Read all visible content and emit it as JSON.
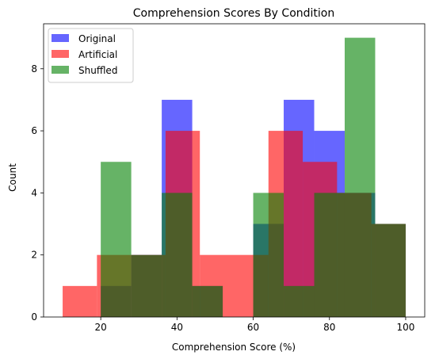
{
  "chart_data": {
    "type": "bar",
    "subtype": "overlaid-histogram",
    "title": "Comprehension Scores By Condition",
    "xlabel": "Comprehension Score (%)",
    "ylabel": "Count",
    "xlim": [
      5,
      105
    ],
    "ylim": [
      0,
      9.45
    ],
    "xticks": [
      20,
      40,
      60,
      80,
      100
    ],
    "yticks": [
      0,
      2,
      4,
      6,
      8
    ],
    "grid": false,
    "legend_position": "top-left",
    "series": [
      {
        "name": "Original",
        "color": "#0000ff",
        "alpha": 0.6,
        "bins": [
          {
            "x0": 20,
            "x1": 28,
            "count": 1
          },
          {
            "x0": 28,
            "x1": 36,
            "count": 2
          },
          {
            "x0": 36,
            "x1": 44,
            "count": 7
          },
          {
            "x0": 44,
            "x1": 52,
            "count": 1
          },
          {
            "x0": 52,
            "x1": 60,
            "count": 0
          },
          {
            "x0": 60,
            "x1": 68,
            "count": 3
          },
          {
            "x0": 68,
            "x1": 76,
            "count": 7
          },
          {
            "x0": 76,
            "x1": 84,
            "count": 6
          },
          {
            "x0": 84,
            "x1": 92,
            "count": 4
          },
          {
            "x0": 92,
            "x1": 100,
            "count": 3
          }
        ]
      },
      {
        "name": "Artificial",
        "color": "#ff0000",
        "alpha": 0.6,
        "bins": [
          {
            "x0": 10,
            "x1": 19,
            "count": 1
          },
          {
            "x0": 19,
            "x1": 28,
            "count": 2
          },
          {
            "x0": 28,
            "x1": 37,
            "count": 2
          },
          {
            "x0": 37,
            "x1": 46,
            "count": 6
          },
          {
            "x0": 46,
            "x1": 55,
            "count": 2
          },
          {
            "x0": 55,
            "x1": 64,
            "count": 2
          },
          {
            "x0": 64,
            "x1": 73,
            "count": 6
          },
          {
            "x0": 73,
            "x1": 82,
            "count": 5
          },
          {
            "x0": 82,
            "x1": 91,
            "count": 4
          },
          {
            "x0": 91,
            "x1": 100,
            "count": 3
          }
        ]
      },
      {
        "name": "Shuffled",
        "color": "#008000",
        "alpha": 0.6,
        "bins": [
          {
            "x0": 20,
            "x1": 28,
            "count": 5
          },
          {
            "x0": 28,
            "x1": 36,
            "count": 2
          },
          {
            "x0": 36,
            "x1": 44,
            "count": 4
          },
          {
            "x0": 44,
            "x1": 52,
            "count": 1
          },
          {
            "x0": 52,
            "x1": 60,
            "count": 0
          },
          {
            "x0": 60,
            "x1": 68,
            "count": 4
          },
          {
            "x0": 68,
            "x1": 76,
            "count": 1
          },
          {
            "x0": 76,
            "x1": 84,
            "count": 4
          },
          {
            "x0": 84,
            "x1": 92,
            "count": 9
          },
          {
            "x0": 92,
            "x1": 100,
            "count": 3
          }
        ]
      }
    ]
  }
}
